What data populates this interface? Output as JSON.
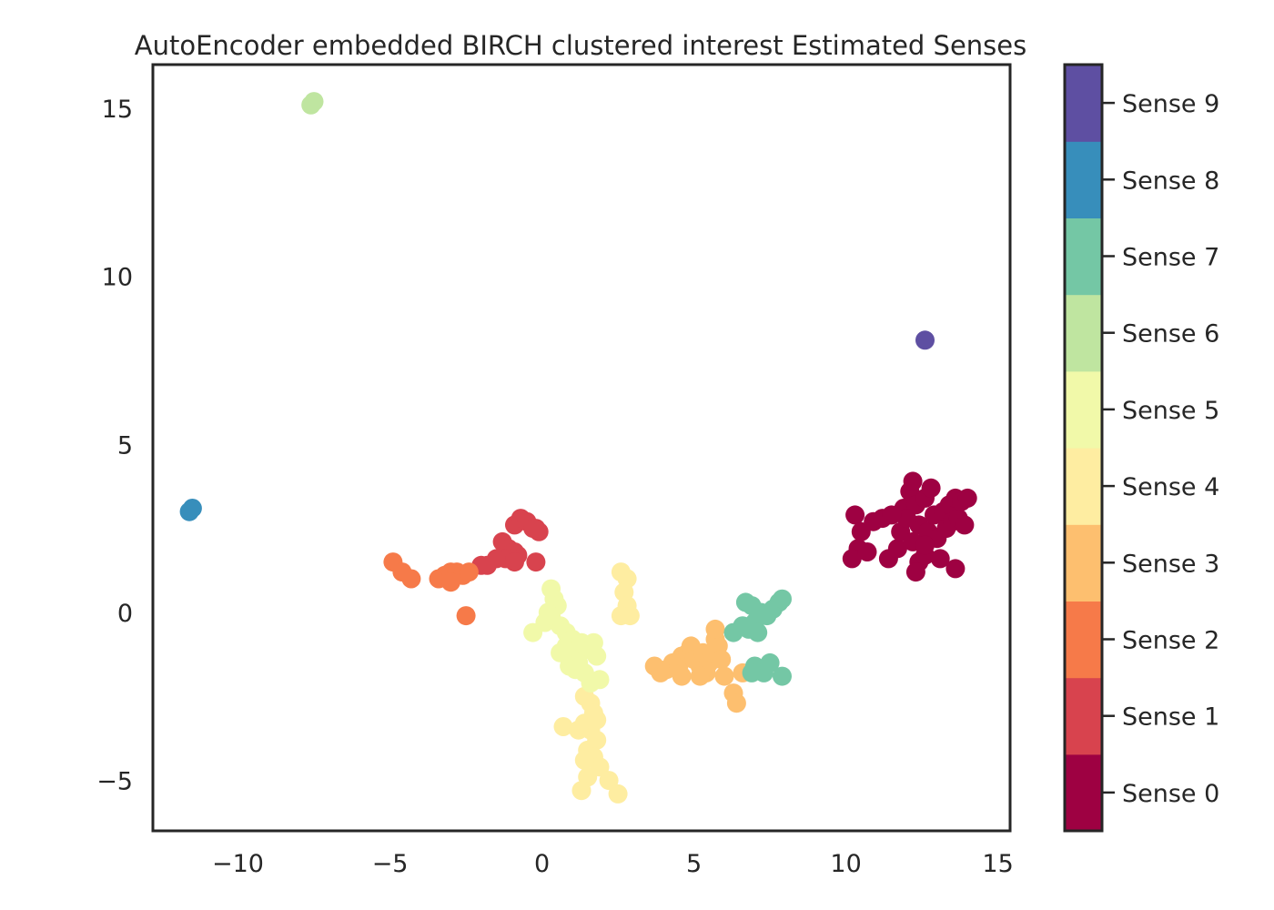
{
  "chart_data": {
    "type": "scatter",
    "title": "AutoEncoder embedded BIRCH clustered interest Estimated Senses",
    "xlabel": "",
    "ylabel": "",
    "xlim": [
      -12.8,
      15.4
    ],
    "ylim": [
      -6.5,
      16.3
    ],
    "x_ticks": [
      -10,
      -5,
      0,
      5,
      10,
      15
    ],
    "x_tick_labels": [
      "−10",
      "−5",
      "0",
      "5",
      "10",
      "15"
    ],
    "y_ticks": [
      -5,
      0,
      5,
      10,
      15
    ],
    "y_tick_labels": [
      "−5",
      "0",
      "5",
      "10",
      "15"
    ],
    "grid": false,
    "colorbar": {
      "labels": [
        "Sense 0",
        "Sense 1",
        "Sense 2",
        "Sense 3",
        "Sense 4",
        "Sense 5",
        "Sense 6",
        "Sense 7",
        "Sense 8",
        "Sense 9"
      ],
      "colors": [
        "#9e0142",
        "#d8434e",
        "#f67a49",
        "#fdbf6f",
        "#feeda1",
        "#f1f9a9",
        "#bfe5a0",
        "#74c7a5",
        "#378ebb",
        "#5e4fa2"
      ]
    },
    "series": [
      {
        "color": "#9e0142",
        "points": [
          [
            10.3,
            2.9
          ],
          [
            10.5,
            2.4
          ],
          [
            10.4,
            1.9
          ],
          [
            10.2,
            1.6
          ],
          [
            10.7,
            1.8
          ],
          [
            10.9,
            2.7
          ],
          [
            11.2,
            2.8
          ],
          [
            11.4,
            1.6
          ],
          [
            11.7,
            1.9
          ],
          [
            11.8,
            2.4
          ],
          [
            11.9,
            3.1
          ],
          [
            12.1,
            3.6
          ],
          [
            12.2,
            3.9
          ],
          [
            12.3,
            3.2
          ],
          [
            12.4,
            2.6
          ],
          [
            12.2,
            2.1
          ],
          [
            12.4,
            1.5
          ],
          [
            12.3,
            1.2
          ],
          [
            12.6,
            1.7
          ],
          [
            12.7,
            2.4
          ],
          [
            12.6,
            3.4
          ],
          [
            12.8,
            3.7
          ],
          [
            12.9,
            2.9
          ],
          [
            13.0,
            2.2
          ],
          [
            13.1,
            1.6
          ],
          [
            13.2,
            3.0
          ],
          [
            13.3,
            2.5
          ],
          [
            13.4,
            3.2
          ],
          [
            13.5,
            2.7
          ],
          [
            13.6,
            3.4
          ],
          [
            13.7,
            2.8
          ],
          [
            13.8,
            3.3
          ],
          [
            13.9,
            2.6
          ],
          [
            14.0,
            3.4
          ],
          [
            13.6,
            1.3
          ],
          [
            12.0,
            2.8
          ],
          [
            11.5,
            2.9
          ],
          [
            12.6,
            2.0
          ]
        ]
      },
      {
        "color": "#d8434e",
        "points": [
          [
            -0.9,
            2.6
          ],
          [
            -0.7,
            2.8
          ],
          [
            -0.5,
            2.7
          ],
          [
            -0.3,
            2.5
          ],
          [
            -0.1,
            2.4
          ],
          [
            -0.2,
            2.5
          ],
          [
            -1.3,
            2.1
          ],
          [
            -1.1,
            1.9
          ],
          [
            -0.9,
            1.8
          ],
          [
            -0.8,
            1.7
          ],
          [
            -1.0,
            1.6
          ],
          [
            -1.2,
            1.6
          ],
          [
            -1.5,
            1.6
          ],
          [
            -1.8,
            1.4
          ],
          [
            -2.0,
            1.4
          ],
          [
            -0.2,
            1.5
          ],
          [
            -0.9,
            1.5
          ]
        ]
      },
      {
        "color": "#f67a49",
        "points": [
          [
            -4.9,
            1.5
          ],
          [
            -4.6,
            1.2
          ],
          [
            -4.3,
            1.0
          ],
          [
            -3.4,
            1.0
          ],
          [
            -3.2,
            1.1
          ],
          [
            -3.0,
            1.2
          ],
          [
            -2.8,
            1.2
          ],
          [
            -2.6,
            1.1
          ],
          [
            -2.4,
            1.2
          ],
          [
            -3.0,
            0.9
          ],
          [
            -2.5,
            -0.1
          ]
        ]
      },
      {
        "color": "#fdbf6f",
        "points": [
          [
            3.7,
            -1.6
          ],
          [
            3.9,
            -1.8
          ],
          [
            4.1,
            -1.7
          ],
          [
            4.3,
            -1.5
          ],
          [
            4.5,
            -1.6
          ],
          [
            4.6,
            -1.3
          ],
          [
            4.8,
            -1.2
          ],
          [
            4.9,
            -1.0
          ],
          [
            5.0,
            -1.4
          ],
          [
            5.2,
            -1.6
          ],
          [
            5.3,
            -1.2
          ],
          [
            5.4,
            -1.8
          ],
          [
            5.5,
            -1.5
          ],
          [
            5.6,
            -1.2
          ],
          [
            5.7,
            -0.8
          ],
          [
            5.8,
            -1.0
          ],
          [
            5.9,
            -1.4
          ],
          [
            5.7,
            -0.5
          ],
          [
            6.0,
            -1.9
          ],
          [
            6.3,
            -2.4
          ],
          [
            6.4,
            -2.7
          ],
          [
            6.6,
            -1.8
          ],
          [
            5.2,
            -1.9
          ],
          [
            4.6,
            -1.9
          ]
        ]
      },
      {
        "color": "#feeda1",
        "points": [
          [
            1.4,
            -2.5
          ],
          [
            1.6,
            -2.7
          ],
          [
            1.7,
            -3.0
          ],
          [
            1.4,
            -3.3
          ],
          [
            1.6,
            -3.5
          ],
          [
            1.8,
            -3.8
          ],
          [
            1.5,
            -4.1
          ],
          [
            1.7,
            -4.3
          ],
          [
            1.9,
            -4.6
          ],
          [
            1.5,
            -4.9
          ],
          [
            1.3,
            -5.3
          ],
          [
            2.2,
            -5.0
          ],
          [
            2.5,
            -5.4
          ],
          [
            0.7,
            -3.4
          ],
          [
            1.2,
            -3.5
          ],
          [
            1.8,
            -3.2
          ],
          [
            2.6,
            1.2
          ],
          [
            2.8,
            1.0
          ],
          [
            2.7,
            0.6
          ],
          [
            2.8,
            0.2
          ],
          [
            2.6,
            -0.1
          ],
          [
            2.9,
            -0.1
          ],
          [
            1.4,
            -4.4
          ]
        ]
      },
      {
        "color": "#f1f9a9",
        "points": [
          [
            0.3,
            0.7
          ],
          [
            0.4,
            0.4
          ],
          [
            0.5,
            0.2
          ],
          [
            0.2,
            0.0
          ],
          [
            0.1,
            -0.3
          ],
          [
            0.6,
            -0.4
          ],
          [
            0.8,
            -0.6
          ],
          [
            1.0,
            -0.8
          ],
          [
            0.8,
            -1.0
          ],
          [
            1.1,
            -1.2
          ],
          [
            1.3,
            -0.9
          ],
          [
            1.5,
            -1.1
          ],
          [
            1.7,
            -0.9
          ],
          [
            1.8,
            -1.3
          ],
          [
            1.2,
            -1.5
          ],
          [
            0.9,
            -1.6
          ],
          [
            1.4,
            -1.8
          ],
          [
            1.6,
            -2.1
          ],
          [
            1.9,
            -2.0
          ],
          [
            1.1,
            -1.7
          ],
          [
            0.3,
            -0.1
          ],
          [
            -0.3,
            -0.6
          ],
          [
            0.6,
            -1.2
          ]
        ]
      },
      {
        "color": "#bfe5a0",
        "points": [
          [
            -7.6,
            15.1
          ],
          [
            -7.5,
            15.2
          ]
        ]
      },
      {
        "color": "#74c7a5",
        "points": [
          [
            6.7,
            0.3
          ],
          [
            6.9,
            0.2
          ],
          [
            7.2,
            0.0
          ],
          [
            7.4,
            -0.1
          ],
          [
            7.6,
            0.1
          ],
          [
            7.8,
            0.3
          ],
          [
            7.9,
            0.4
          ],
          [
            7.0,
            -0.3
          ],
          [
            6.8,
            -0.5
          ],
          [
            6.6,
            -0.4
          ],
          [
            6.3,
            -0.6
          ],
          [
            7.1,
            -0.6
          ],
          [
            7.0,
            -1.6
          ],
          [
            7.2,
            -1.7
          ],
          [
            7.5,
            -1.5
          ],
          [
            7.9,
            -1.9
          ],
          [
            7.3,
            -1.8
          ],
          [
            6.9,
            -1.8
          ]
        ]
      },
      {
        "color": "#378ebb",
        "points": [
          [
            -11.6,
            3.0
          ],
          [
            -11.5,
            3.1
          ]
        ]
      },
      {
        "color": "#5e4fa2",
        "points": [
          [
            12.6,
            8.1
          ]
        ]
      }
    ]
  }
}
